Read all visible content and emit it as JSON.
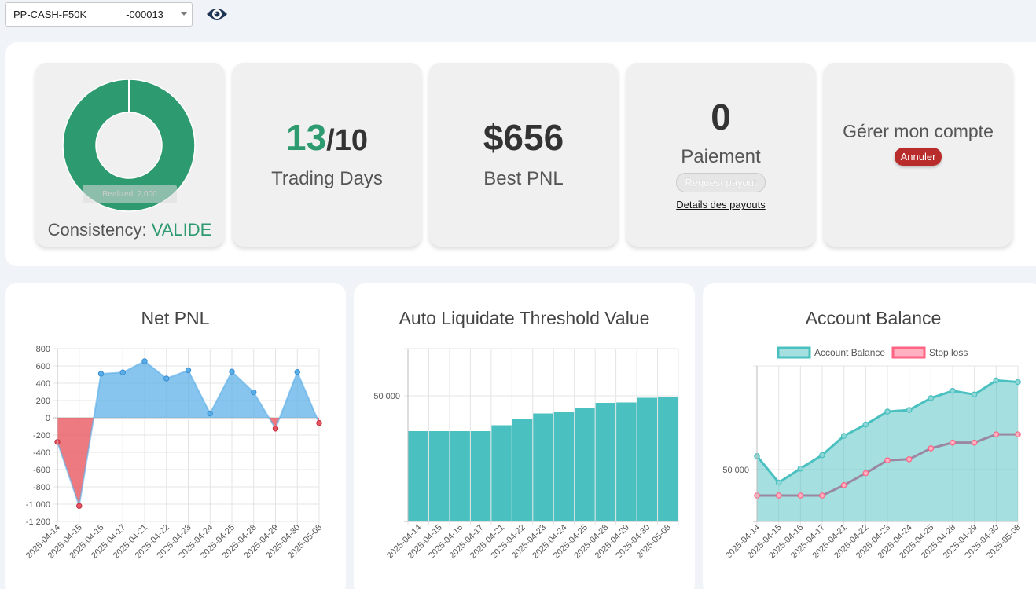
{
  "account": {
    "name": "PP-CASH-F50K",
    "number": "-000013"
  },
  "colors": {
    "green": "#2e9a6f",
    "blue": "#5aaee8",
    "red": "#e9545e",
    "teal": "#4bc0c0",
    "pink": "#ff6384",
    "purple": "#9b88a0"
  },
  "cards": {
    "consistency": {
      "label": "Consistency:",
      "status": "VALIDE",
      "hidden_label": "Realized: 2,000"
    },
    "trading_days": {
      "current": "13",
      "target": "/10",
      "label": "Trading Days"
    },
    "best_pnl": {
      "value": "$656",
      "label": "Best PNL"
    },
    "payment": {
      "count": "0",
      "label": "Paiement",
      "request_btn": "Request payout",
      "details_link": "Details des payouts"
    },
    "manage": {
      "title": "Gérer mon compte",
      "cancel_btn": "Annuler"
    }
  },
  "chart_data": [
    {
      "type": "area",
      "title": "Net PNL",
      "categories": [
        "2025-04-14",
        "2025-04-15",
        "2025-04-16",
        "2025-04-17",
        "2025-04-21",
        "2025-04-22",
        "2025-04-23",
        "2025-04-24",
        "2025-04-25",
        "2025-04-28",
        "2025-04-29",
        "2025-04-30",
        "2025-05-08"
      ],
      "values": [
        -280,
        -1020,
        510,
        525,
        655,
        455,
        550,
        50,
        535,
        295,
        -125,
        530,
        -60
      ],
      "ylim": [
        -1200,
        800
      ],
      "yticks": [
        "800",
        "600",
        "400",
        "200",
        "0",
        "-200",
        "-400",
        "-600",
        "-800",
        "-1 000",
        "-1 200"
      ],
      "grid": true
    },
    {
      "type": "bar",
      "title": "Auto Liquidate Threshold Value",
      "categories": [
        "2025-04-14",
        "2025-04-15",
        "2025-04-16",
        "2025-04-17",
        "2025-04-21",
        "2025-04-22",
        "2025-04-23",
        "2025-04-24",
        "2025-04-25",
        "2025-04-28",
        "2025-04-29",
        "2025-04-30",
        "2025-05-08"
      ],
      "values": [
        48100,
        48100,
        48100,
        48100,
        48250,
        48400,
        48550,
        48580,
        48700,
        48820,
        48830,
        48950,
        48960
      ],
      "ytick_label": "50 000",
      "grid": true
    },
    {
      "type": "line",
      "title": "Account Balance",
      "categories": [
        "2025-04-14",
        "2025-04-15",
        "2025-04-16",
        "2025-04-17",
        "2025-04-21",
        "2025-04-22",
        "2025-04-23",
        "2025-04-24",
        "2025-04-25",
        "2025-04-28",
        "2025-04-29",
        "2025-04-30",
        "2025-05-08"
      ],
      "series": [
        {
          "name": "Account Balance",
          "values": [
            50260,
            49750,
            50020,
            50280,
            50650,
            50870,
            51120,
            51150,
            51380,
            51520,
            51450,
            51720,
            51690
          ]
        },
        {
          "name": "Stop loss",
          "values": [
            49500,
            49500,
            49500,
            49500,
            49700,
            49930,
            50180,
            50200,
            50410,
            50520,
            50520,
            50680,
            50680
          ]
        }
      ],
      "ytick_label": "50 000",
      "legend": "top",
      "grid": true
    }
  ]
}
